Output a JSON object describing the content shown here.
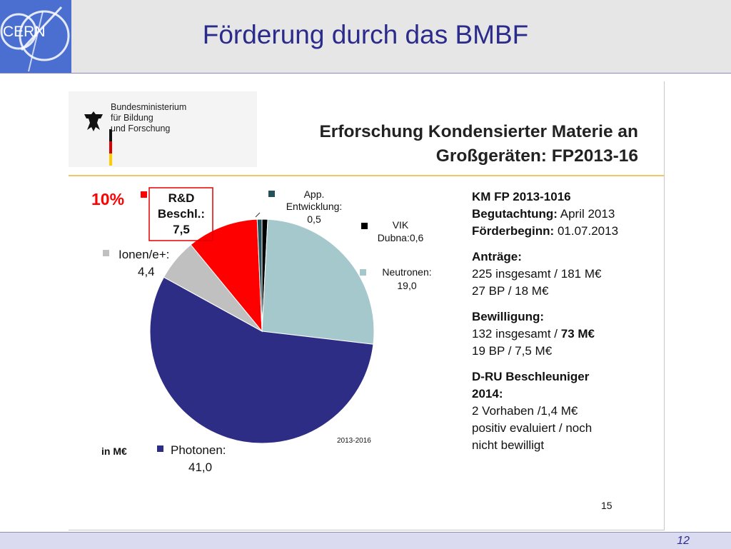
{
  "header": {
    "logo_text": "CERN",
    "title": "Förderung durch das BMBF"
  },
  "ministry": {
    "lines": [
      "Bundesministerium",
      "für Bildung",
      "und Forschung"
    ]
  },
  "inner_title": {
    "line1": "Erforschung Kondensierter Materie an",
    "line2": "Großgeräten: FP2013-16"
  },
  "info": {
    "km_title": "KM FP 2013-1016",
    "begut_label": "Begutachtung:",
    "begut_value": "April 2013",
    "foerder_label": "Förderbeginn:",
    "foerder_value": "01.07.2013",
    "antraege_label": "Anträge:",
    "antraege_line1": "225 insgesamt / 181 M€",
    "antraege_line2": "27 BP / 18 M€",
    "bewilligung_label": "Bewilligung:",
    "bewilligung_line1_a": "132 insgesamt / ",
    "bewilligung_line1_b": "73 M€",
    "bewilligung_line2": "19 BP / 7,5 M€",
    "dru_label_1": "D-RU Beschleuniger",
    "dru_label_2": "2014:",
    "dru_line1": "2 Vorhaben /1,4 M€",
    "dru_line2": "positiv evaluiert / noch",
    "dru_line3": "nicht bewilligt"
  },
  "page_number": "15",
  "footer": {
    "slide_number": "12"
  },
  "chart_data": {
    "type": "pie",
    "unit_label": "in M€",
    "period_label": "2013-2016",
    "highlight_label": "10%",
    "slices": [
      {
        "key": "vik",
        "label_lines": [
          "VIK",
          "Dubna:0,6"
        ],
        "value": 0.6,
        "color": "#000000"
      },
      {
        "key": "neutronen",
        "label_lines": [
          "Neutronen:",
          "19,0"
        ],
        "value": 19.0,
        "color": "#a5c8cc"
      },
      {
        "key": "photonen",
        "label_lines": [
          "Photonen:",
          "41,0"
        ],
        "value": 41.0,
        "color": "#2e2d85"
      },
      {
        "key": "ionen",
        "label_lines": [
          "Ionen/e+:",
          "4,4"
        ],
        "value": 4.4,
        "color": "#c0c0c0"
      },
      {
        "key": "rd",
        "label_lines": [
          "R&D",
          "Beschl.:",
          "7,5"
        ],
        "value": 7.5,
        "color": "#ff0000"
      },
      {
        "key": "app",
        "label_lines": [
          "App.",
          "Entwicklung:",
          "0,5"
        ],
        "value": 0.5,
        "color": "#24525a"
      }
    ]
  }
}
